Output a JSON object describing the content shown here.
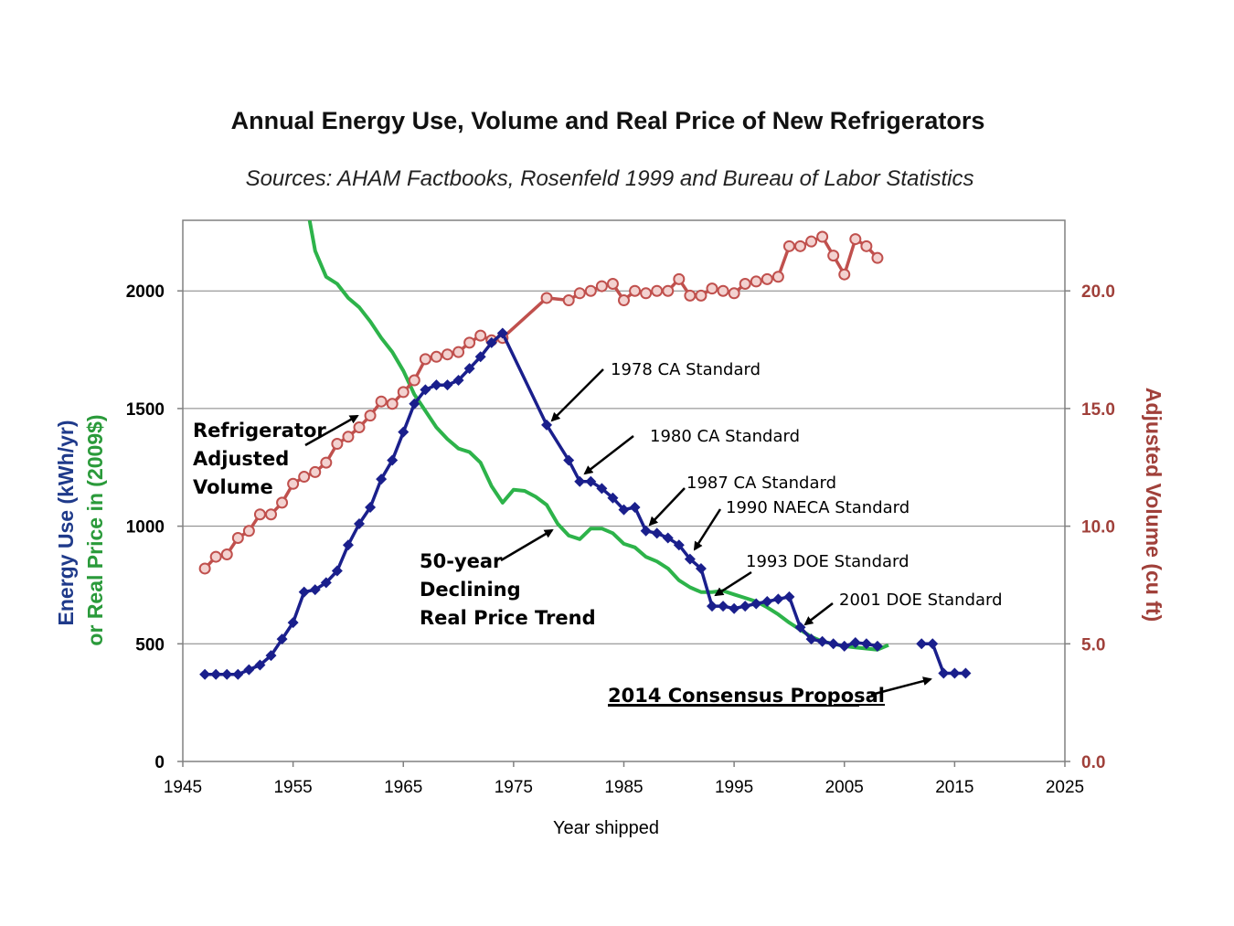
{
  "chart_data": {
    "type": "line",
    "title": "Annual Energy Use, Volume and Real Price of New Refrigerators",
    "subtitle": "Sources: AHAM Factbooks, Rosenfeld 1999 and Bureau of Labor Statistics",
    "xlabel": "Year shipped",
    "ylabel_left_part1": "Energy Use (kWh/yr)",
    "ylabel_left_part2": "or Real Price in (2009$)",
    "ylabel_right": "Adjusted Volume (cu ft)",
    "xlim": [
      1945,
      2025
    ],
    "ylim_left": [
      0,
      2300
    ],
    "ylim_right": [
      0,
      23
    ],
    "x_ticks": [
      "1945",
      "1955",
      "1965",
      "1975",
      "1985",
      "1995",
      "2005",
      "2015",
      "2025"
    ],
    "y_ticks_left": [
      "0",
      "500",
      "1000",
      "1500",
      "2000"
    ],
    "y_ticks_right": [
      "0.0",
      "5.0",
      "10.0",
      "15.0",
      "20.0"
    ],
    "colors": {
      "energy": "#1a1f8c",
      "price": "#2db34a",
      "volume": "#c0504d",
      "right_axis": "#a0403a",
      "grid": "#808080"
    },
    "series": [
      {
        "name": "Energy Use",
        "axis": "left",
        "points": [
          [
            1947,
            370
          ],
          [
            1948,
            370
          ],
          [
            1949,
            370
          ],
          [
            1950,
            370
          ],
          [
            1951,
            390
          ],
          [
            1952,
            410
          ],
          [
            1953,
            450
          ],
          [
            1954,
            520
          ],
          [
            1955,
            590
          ],
          [
            1956,
            720
          ],
          [
            1957,
            730
          ],
          [
            1958,
            760
          ],
          [
            1959,
            810
          ],
          [
            1960,
            920
          ],
          [
            1961,
            1010
          ],
          [
            1962,
            1080
          ],
          [
            1963,
            1200
          ],
          [
            1964,
            1280
          ],
          [
            1965,
            1400
          ],
          [
            1966,
            1520
          ],
          [
            1967,
            1580
          ],
          [
            1968,
            1600
          ],
          [
            1969,
            1600
          ],
          [
            1970,
            1620
          ],
          [
            1971,
            1670
          ],
          [
            1972,
            1720
          ],
          [
            1973,
            1780
          ],
          [
            1974,
            1820
          ],
          [
            1978,
            1430
          ],
          [
            1980,
            1280
          ],
          [
            1981,
            1190
          ],
          [
            1982,
            1190
          ],
          [
            1983,
            1160
          ],
          [
            1984,
            1120
          ],
          [
            1985,
            1070
          ],
          [
            1986,
            1080
          ],
          [
            1987,
            980
          ],
          [
            1988,
            970
          ],
          [
            1989,
            950
          ],
          [
            1990,
            920
          ],
          [
            1991,
            860
          ],
          [
            1992,
            820
          ],
          [
            1993,
            660
          ],
          [
            1994,
            660
          ],
          [
            1995,
            650
          ],
          [
            1996,
            660
          ],
          [
            1997,
            670
          ],
          [
            1998,
            680
          ],
          [
            1999,
            690
          ],
          [
            2000,
            700
          ],
          [
            2001,
            570
          ],
          [
            2002,
            520
          ],
          [
            2003,
            510
          ],
          [
            2004,
            500
          ],
          [
            2005,
            490
          ],
          [
            2006,
            505
          ],
          [
            2007,
            500
          ],
          [
            2008,
            490
          ]
        ]
      },
      {
        "name": "Energy Use (2014 Consensus Proposal)",
        "axis": "left",
        "points": [
          [
            2012,
            500
          ],
          [
            2013,
            500
          ],
          [
            2014,
            375
          ],
          [
            2015,
            375
          ],
          [
            2016,
            375
          ]
        ]
      },
      {
        "name": "Real Price",
        "axis": "left",
        "points": [
          [
            1956.5,
            2300
          ],
          [
            1957,
            2170
          ],
          [
            1958,
            2060
          ],
          [
            1959,
            2030
          ],
          [
            1960,
            1970
          ],
          [
            1961,
            1930
          ],
          [
            1962,
            1870
          ],
          [
            1963,
            1800
          ],
          [
            1964,
            1740
          ],
          [
            1965,
            1660
          ],
          [
            1966,
            1560
          ],
          [
            1967,
            1490
          ],
          [
            1968,
            1420
          ],
          [
            1969,
            1370
          ],
          [
            1970,
            1330
          ],
          [
            1971,
            1315
          ],
          [
            1972,
            1270
          ],
          [
            1973,
            1170
          ],
          [
            1974,
            1100
          ],
          [
            1975,
            1155
          ],
          [
            1976,
            1150
          ],
          [
            1977,
            1125
          ],
          [
            1978,
            1090
          ],
          [
            1979,
            1010
          ],
          [
            1980,
            960
          ],
          [
            1981,
            945
          ],
          [
            1982,
            990
          ],
          [
            1983,
            990
          ],
          [
            1984,
            970
          ],
          [
            1985,
            925
          ],
          [
            1986,
            910
          ],
          [
            1987,
            870
          ],
          [
            1988,
            850
          ],
          [
            1989,
            820
          ],
          [
            1990,
            770
          ],
          [
            1991,
            740
          ],
          [
            1992,
            720
          ],
          [
            1993,
            720
          ],
          [
            1994,
            725
          ],
          [
            1995,
            710
          ],
          [
            1996,
            695
          ],
          [
            1997,
            680
          ],
          [
            1998,
            655
          ],
          [
            1999,
            625
          ],
          [
            2000,
            590
          ],
          [
            2001,
            560
          ],
          [
            2002,
            530
          ],
          [
            2003,
            510
          ],
          [
            2004,
            500
          ],
          [
            2005,
            490
          ],
          [
            2006,
            485
          ],
          [
            2007,
            480
          ],
          [
            2008,
            475
          ],
          [
            2009,
            495
          ]
        ]
      },
      {
        "name": "Refrigerator Adjusted Volume",
        "axis": "right",
        "points": [
          [
            1947,
            8.2
          ],
          [
            1948,
            8.7
          ],
          [
            1949,
            8.8
          ],
          [
            1950,
            9.5
          ],
          [
            1951,
            9.8
          ],
          [
            1952,
            10.5
          ],
          [
            1953,
            10.5
          ],
          [
            1954,
            11
          ],
          [
            1955,
            11.8
          ],
          [
            1956,
            12.1
          ],
          [
            1957,
            12.3
          ],
          [
            1958,
            12.7
          ],
          [
            1959,
            13.5
          ],
          [
            1960,
            13.8
          ],
          [
            1961,
            14.2
          ],
          [
            1962,
            14.7
          ],
          [
            1963,
            15.3
          ],
          [
            1964,
            15.2
          ],
          [
            1965,
            15.7
          ],
          [
            1966,
            16.2
          ],
          [
            1967,
            17.1
          ],
          [
            1968,
            17.2
          ],
          [
            1969,
            17.3
          ],
          [
            1970,
            17.4
          ],
          [
            1971,
            17.8
          ],
          [
            1972,
            18.1
          ],
          [
            1973,
            17.9
          ],
          [
            1974,
            18
          ],
          [
            1978,
            19.7
          ],
          [
            1980,
            19.6
          ],
          [
            1981,
            19.9
          ],
          [
            1982,
            20
          ],
          [
            1983,
            20.2
          ],
          [
            1984,
            20.3
          ],
          [
            1985,
            19.6
          ],
          [
            1986,
            20
          ],
          [
            1987,
            19.9
          ],
          [
            1988,
            20
          ],
          [
            1989,
            20
          ],
          [
            1990,
            20.5
          ],
          [
            1991,
            19.8
          ],
          [
            1992,
            19.8
          ],
          [
            1993,
            20.1
          ],
          [
            1994,
            20
          ],
          [
            1995,
            19.9
          ],
          [
            1996,
            20.3
          ],
          [
            1997,
            20.4
          ],
          [
            1998,
            20.5
          ],
          [
            1999,
            20.6
          ],
          [
            2000,
            21.9
          ],
          [
            2001,
            21.9
          ],
          [
            2002,
            22.1
          ],
          [
            2003,
            22.3
          ],
          [
            2004,
            21.5
          ],
          [
            2005,
            20.7
          ],
          [
            2006,
            22.2
          ],
          [
            2007,
            21.9
          ],
          [
            2008,
            21.4
          ]
        ]
      }
    ],
    "annotations": {
      "ca1978": "1978 CA Standard",
      "ca1980": "1980 CA Standard",
      "ca1987": "1987 CA Standard",
      "naeca1990": "1990 NAECA Standard",
      "doe1993": "1993 DOE Standard",
      "doe2001": "2001 DOE Standard",
      "volume_line1": "Refrigerator",
      "volume_line2": "Adjusted",
      "volume_line3": "Volume",
      "price_line1": "50-year",
      "price_line2": "Declining",
      "price_line3": "Real Price Trend",
      "consensus": "2014 Consensus Proposal"
    }
  }
}
